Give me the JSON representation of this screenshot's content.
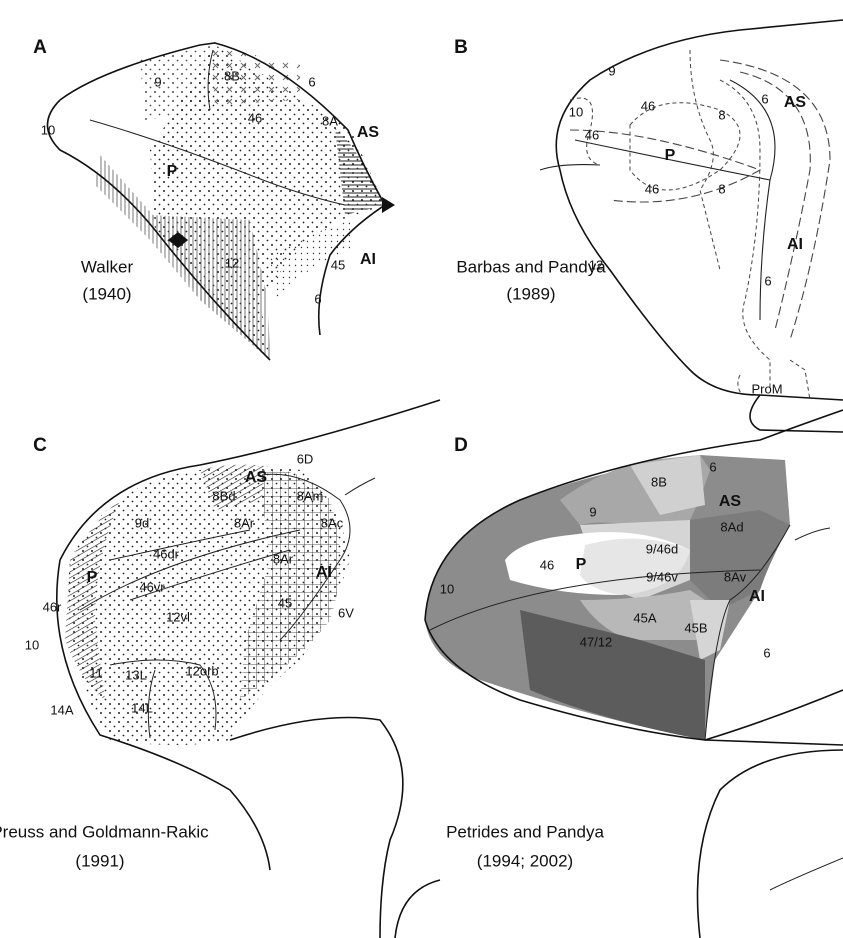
{
  "panels": [
    {
      "letter": "A",
      "caption": [
        "Walker",
        "(1940)"
      ],
      "areas": [
        "9",
        "8B",
        "6",
        "46",
        "8A",
        "10",
        "12",
        "45",
        "6"
      ],
      "sulci": [
        "AS",
        "P",
        "AI"
      ]
    },
    {
      "letter": "B",
      "caption": [
        "Barbas and Pandya",
        "(1989)"
      ],
      "areas": [
        "9",
        "10",
        "46",
        "46",
        "8",
        "46",
        "8",
        "6",
        "12",
        "6",
        "ProM"
      ],
      "sulci": [
        "AS",
        "P",
        "AI"
      ]
    },
    {
      "letter": "C",
      "caption": [
        "Preuss and Goldmann-Rakic",
        "(1991)"
      ],
      "areas": [
        "6D",
        "8Bd",
        "8Am",
        "9d",
        "8Ar",
        "8Ac",
        "46dr",
        "8Ar",
        "46vr",
        "46r",
        "45",
        "6V",
        "12vl",
        "10",
        "11",
        "13L",
        "12orb",
        "14A",
        "14L"
      ],
      "sulci": [
        "AS",
        "AI",
        "P"
      ]
    },
    {
      "letter": "D",
      "caption": [
        "Petrides and Pandya",
        "(1994; 2002)"
      ],
      "areas": [
        "6",
        "8B",
        "9",
        "8Ad",
        "9/46d",
        "46",
        "8Av",
        "9/46v",
        "10",
        "45A",
        "45B",
        "47/12",
        "6"
      ],
      "sulci": [
        "AS",
        "P",
        "AI"
      ]
    }
  ]
}
